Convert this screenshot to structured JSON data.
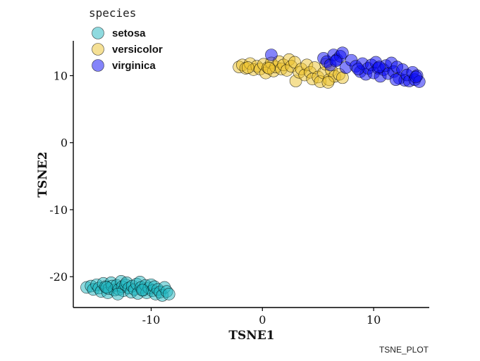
{
  "chart_data": {
    "type": "scatter",
    "xlabel": "TSNE1",
    "ylabel": "TSNE2",
    "xlim": [
      -17,
      15
    ],
    "ylim": [
      -24.6,
      15.2
    ],
    "x_ticks": [
      -10,
      0,
      10
    ],
    "y_ticks": [
      -20,
      -10,
      0,
      10
    ],
    "x_tick_labels": [
      "-10",
      "0",
      "10"
    ],
    "y_tick_labels": [
      "-20",
      "-10",
      "0",
      "10"
    ],
    "grid": false,
    "legend_title": "species",
    "legend_position": "top-left",
    "caption": "TSNE_PLOT",
    "series": [
      {
        "name": "setosa",
        "color": "#1FB5BF",
        "points": [
          [
            -15.8,
            -21.6
          ],
          [
            -15.4,
            -21.4
          ],
          [
            -15.2,
            -21.9
          ],
          [
            -14.9,
            -21.2
          ],
          [
            -14.7,
            -21.7
          ],
          [
            -14.5,
            -22.2
          ],
          [
            -14.3,
            -21.0
          ],
          [
            -14.1,
            -21.5
          ],
          [
            -13.9,
            -22.4
          ],
          [
            -13.8,
            -21.8
          ],
          [
            -13.6,
            -20.9
          ],
          [
            -13.5,
            -21.4
          ],
          [
            -13.3,
            -22.0
          ],
          [
            -13.1,
            -21.3
          ],
          [
            -12.9,
            -21.9
          ],
          [
            -12.7,
            -20.7
          ],
          [
            -12.6,
            -21.5
          ],
          [
            -12.5,
            -22.1
          ],
          [
            -12.3,
            -21.2
          ],
          [
            -12.2,
            -20.9
          ],
          [
            -12.0,
            -21.7
          ],
          [
            -11.8,
            -22.3
          ],
          [
            -11.7,
            -21.4
          ],
          [
            -11.5,
            -21.9
          ],
          [
            -11.3,
            -21.1
          ],
          [
            -11.2,
            -22.5
          ],
          [
            -11.0,
            -20.8
          ],
          [
            -10.9,
            -21.6
          ],
          [
            -10.7,
            -22.0
          ],
          [
            -10.5,
            -21.3
          ],
          [
            -10.4,
            -22.4
          ],
          [
            -10.2,
            -21.7
          ],
          [
            -10.0,
            -21.2
          ],
          [
            -9.9,
            -22.1
          ],
          [
            -9.7,
            -21.5
          ],
          [
            -9.6,
            -22.6
          ],
          [
            -9.4,
            -21.9
          ],
          [
            -9.2,
            -22.3
          ],
          [
            -9.0,
            -22.8
          ],
          [
            -8.8,
            -21.6
          ],
          [
            -8.6,
            -22.2
          ],
          [
            -8.4,
            -22.6
          ],
          [
            -13.0,
            -22.6
          ],
          [
            -14.0,
            -21.6
          ],
          [
            -10.8,
            -22.0
          ]
        ]
      },
      {
        "name": "versicolor",
        "color": "#EBC12C",
        "points": [
          [
            -2.1,
            11.3
          ],
          [
            -1.8,
            11.6
          ],
          [
            -1.5,
            11.1
          ],
          [
            -1.1,
            11.8
          ],
          [
            -0.8,
            10.9
          ],
          [
            -0.5,
            11.4
          ],
          [
            -0.2,
            11.0
          ],
          [
            0.1,
            11.7
          ],
          [
            0.3,
            10.4
          ],
          [
            0.5,
            11.2
          ],
          [
            0.8,
            11.9
          ],
          [
            1.0,
            10.7
          ],
          [
            1.2,
            11.3
          ],
          [
            1.5,
            12.1
          ],
          [
            1.7,
            11.0
          ],
          [
            1.9,
            11.6
          ],
          [
            2.2,
            10.8
          ],
          [
            2.4,
            12.4
          ],
          [
            2.6,
            11.4
          ],
          [
            2.9,
            12.0
          ],
          [
            3.0,
            9.2
          ],
          [
            3.3,
            10.5
          ],
          [
            3.5,
            11.0
          ],
          [
            3.8,
            10.1
          ],
          [
            4.0,
            11.6
          ],
          [
            4.3,
            10.5
          ],
          [
            4.5,
            9.5
          ],
          [
            4.7,
            11.2
          ],
          [
            5.0,
            9.8
          ],
          [
            5.2,
            9.1
          ],
          [
            5.5,
            10.4
          ],
          [
            5.7,
            11.7
          ],
          [
            6.0,
            9.4
          ],
          [
            6.2,
            10.8
          ],
          [
            6.5,
            9.9
          ],
          [
            6.9,
            10.2
          ],
          [
            7.2,
            9.7
          ],
          [
            0.6,
            11.1
          ],
          [
            -1.3,
            11.2
          ],
          [
            5.9,
            9.0
          ]
        ]
      },
      {
        "name": "virginica",
        "color": "#0A0AF5",
        "points": [
          [
            0.8,
            13.1
          ],
          [
            5.5,
            12.6
          ],
          [
            5.8,
            12.1
          ],
          [
            6.1,
            11.6
          ],
          [
            6.4,
            13.1
          ],
          [
            6.7,
            12.4
          ],
          [
            7.0,
            12.9
          ],
          [
            7.2,
            13.4
          ],
          [
            7.5,
            11.2
          ],
          [
            8.0,
            12.3
          ],
          [
            8.4,
            11.4
          ],
          [
            8.8,
            10.6
          ],
          [
            9.0,
            11.8
          ],
          [
            9.3,
            10.2
          ],
          [
            9.5,
            11.1
          ],
          [
            9.8,
            11.6
          ],
          [
            10.0,
            10.4
          ],
          [
            10.2,
            12.0
          ],
          [
            10.4,
            11.1
          ],
          [
            10.6,
            9.9
          ],
          [
            10.9,
            10.9
          ],
          [
            11.1,
            11.5
          ],
          [
            11.3,
            10.3
          ],
          [
            11.6,
            11.9
          ],
          [
            11.8,
            10.6
          ],
          [
            12.1,
            11.3
          ],
          [
            12.3,
            9.6
          ],
          [
            12.6,
            10.9
          ],
          [
            12.8,
            9.3
          ],
          [
            13.0,
            10.1
          ],
          [
            13.2,
            9.2
          ],
          [
            13.5,
            10.5
          ],
          [
            13.7,
            9.4
          ],
          [
            13.9,
            10.0
          ],
          [
            14.1,
            9.1
          ],
          [
            13.8,
            9.8
          ],
          [
            12.0,
            9.4
          ],
          [
            10.5,
            11.3
          ],
          [
            8.6,
            11.0
          ],
          [
            6.6,
            12.2
          ]
        ]
      }
    ]
  }
}
